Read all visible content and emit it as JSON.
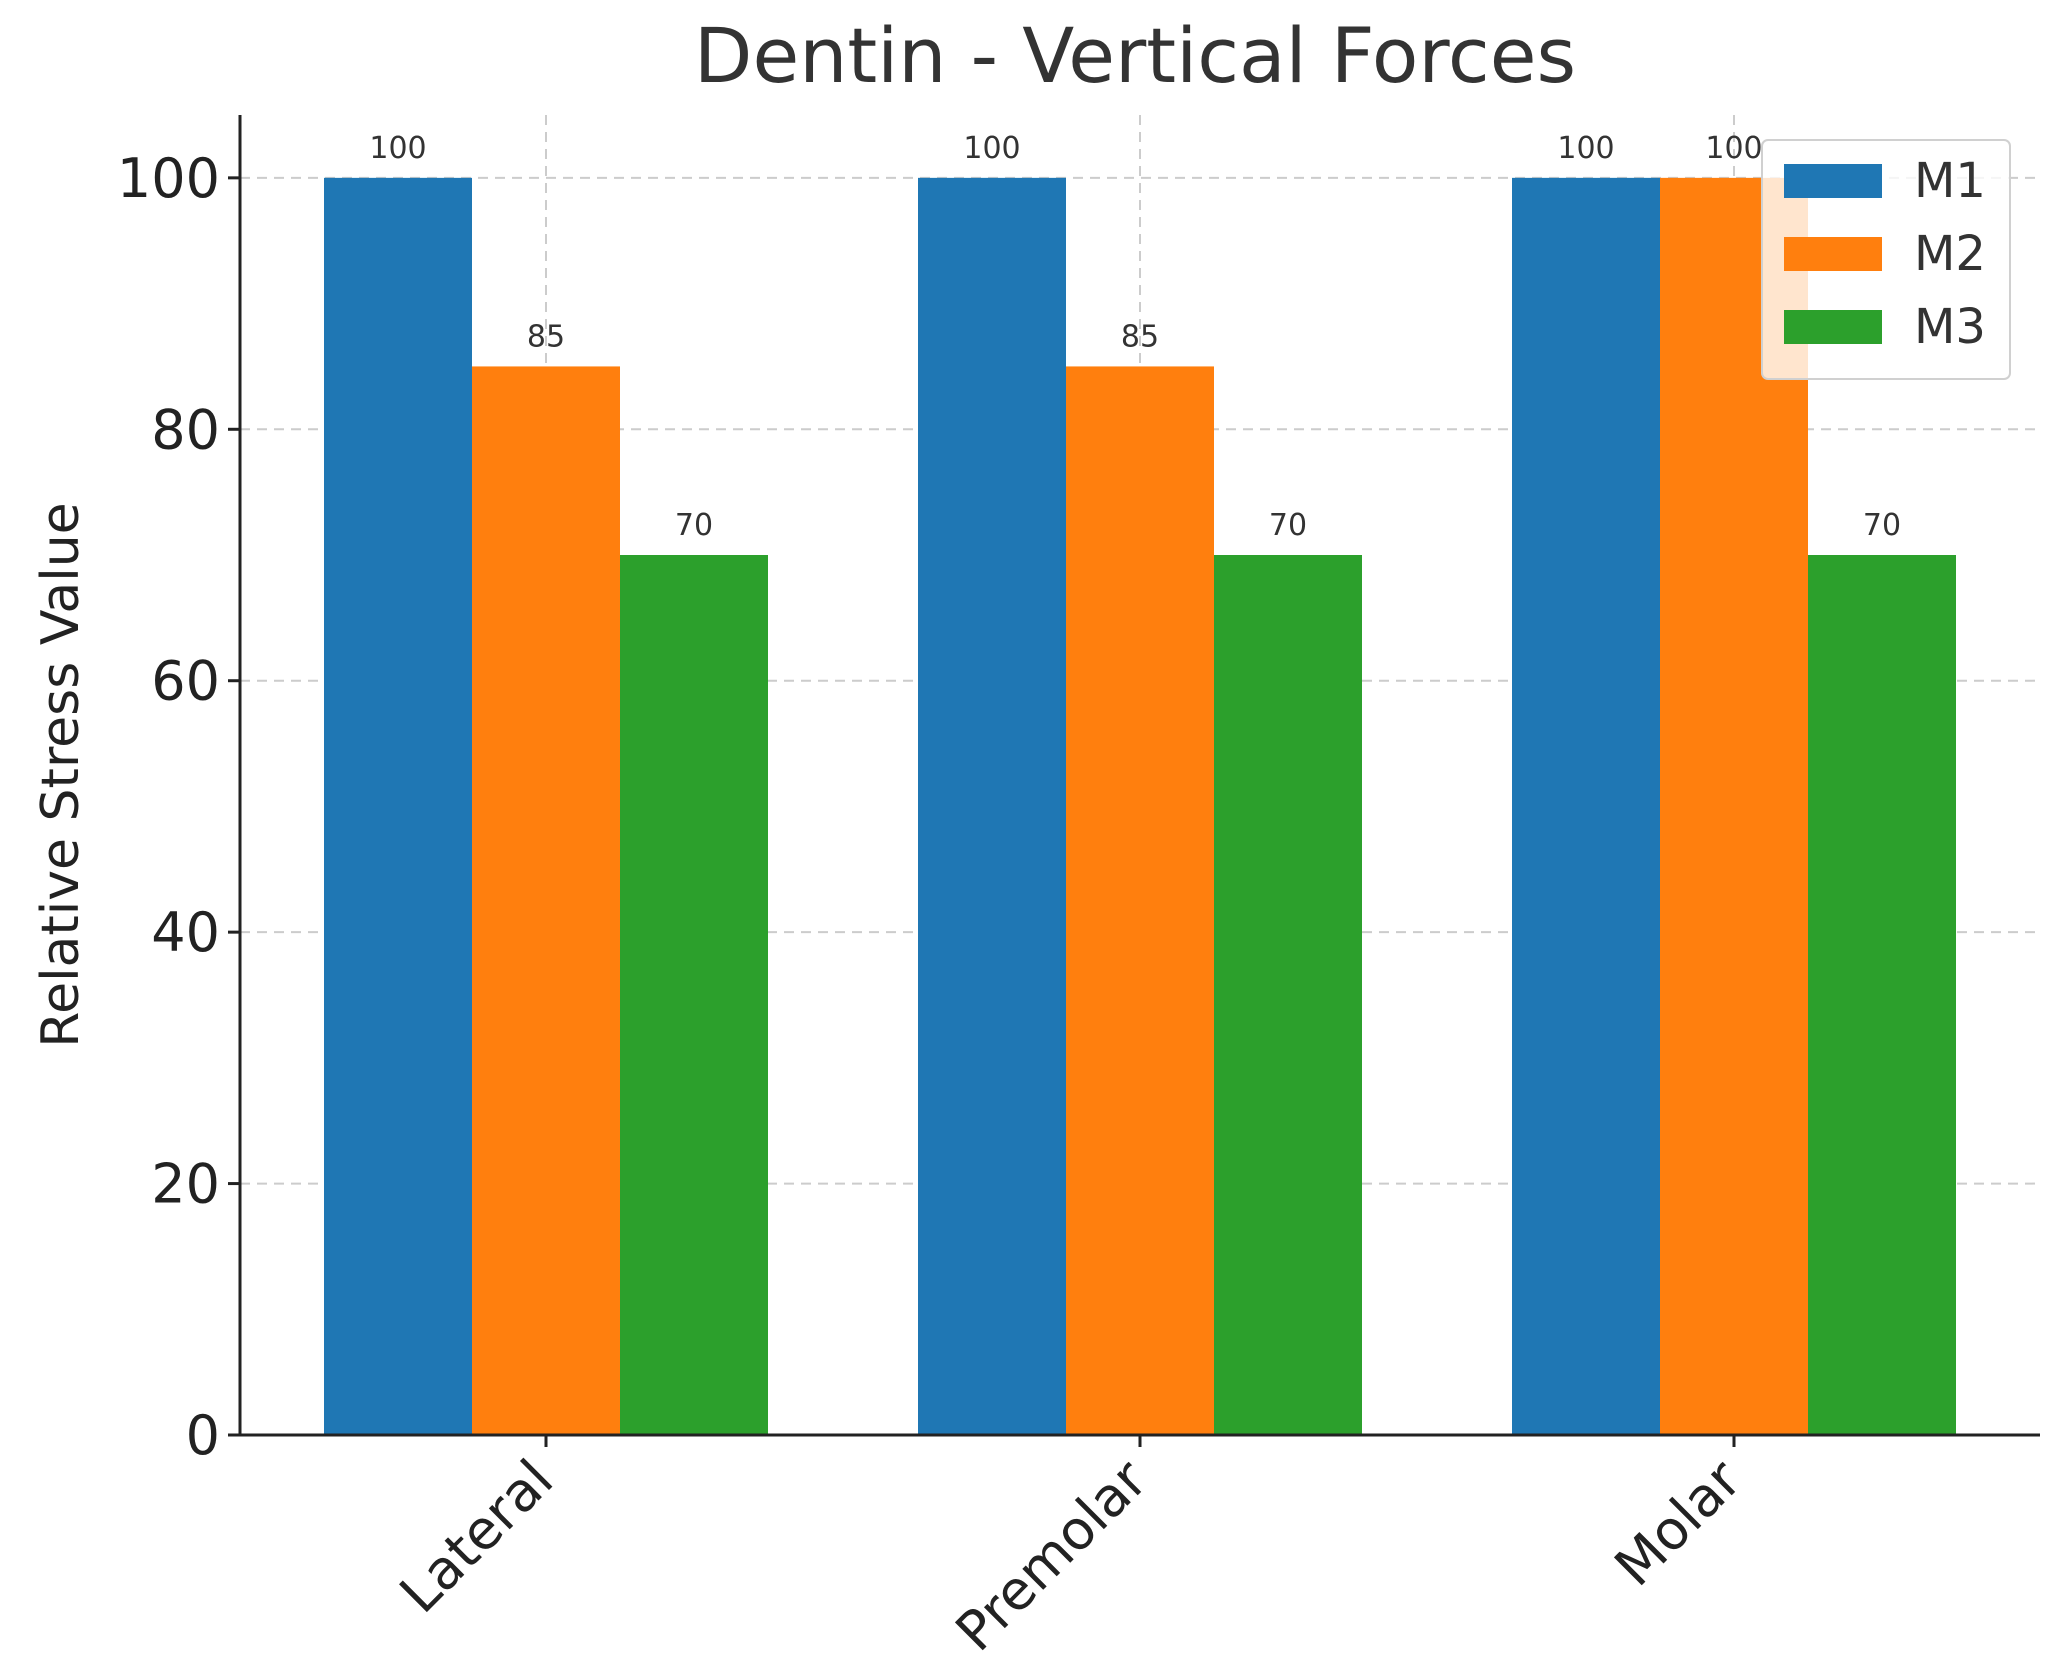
{
  "chart_data": {
    "type": "bar",
    "title": "Dentin - Vertical Forces",
    "xlabel": "",
    "ylabel": "Relative Stress Value",
    "categories": [
      "Lateral",
      "Premolar",
      "Molar"
    ],
    "series": [
      {
        "name": "M1",
        "color": "#1f77b4",
        "values": [
          100,
          100,
          100
        ]
      },
      {
        "name": "M2",
        "color": "#ff7f0e",
        "values": [
          85,
          85,
          100
        ]
      },
      {
        "name": "M3",
        "color": "#2ca02c",
        "values": [
          70,
          70,
          70
        ]
      }
    ],
    "ylim": [
      0,
      105
    ],
    "yticks": [
      0,
      20,
      40,
      60,
      80,
      100
    ],
    "grid": true,
    "legend_position": "top-right",
    "data_labels": true
  }
}
